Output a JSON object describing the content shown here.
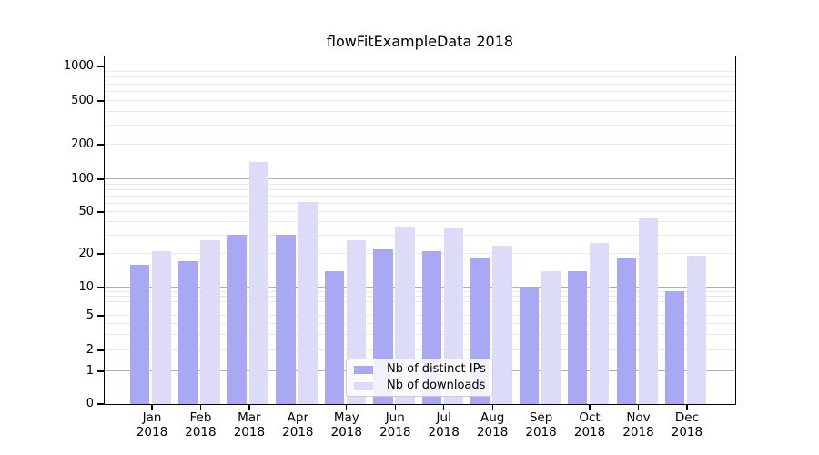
{
  "title": "flowFitExampleData 2018",
  "axes": {
    "x_months": [
      "Jan",
      "Feb",
      "Mar",
      "Apr",
      "May",
      "Jun",
      "Jul",
      "Aug",
      "Sep",
      "Oct",
      "Nov",
      "Dec"
    ],
    "x_year": "2018",
    "y_tick_labels": [
      "0",
      "1",
      "2",
      "5",
      "10",
      "20",
      "50",
      "100",
      "200",
      "500",
      "1000"
    ]
  },
  "chart_data": {
    "type": "bar",
    "title": "flowFitExampleData 2018",
    "categories": [
      "Jan 2018",
      "Feb 2018",
      "Mar 2018",
      "Apr 2018",
      "May 2018",
      "Jun 2018",
      "Jul 2018",
      "Aug 2018",
      "Sep 2018",
      "Oct 2018",
      "Nov 2018",
      "Dec 2018"
    ],
    "series": [
      {
        "name": "Nb of distinct IPs",
        "color": "#a8a8f5",
        "values": [
          16,
          17,
          30,
          30,
          14,
          22,
          21,
          18,
          10,
          14,
          18,
          9
        ]
      },
      {
        "name": "Nb of downloads",
        "color": "#dcdcf9",
        "values": [
          21,
          27,
          140,
          62,
          27,
          36,
          35,
          24,
          14,
          25,
          43,
          19
        ]
      }
    ],
    "xlabel": "",
    "ylabel": "",
    "yscale": "symlog (linear 0-1, log above 1)",
    "ytick_values": [
      0,
      1,
      2,
      5,
      10,
      20,
      50,
      100,
      200,
      500,
      1000
    ],
    "ylim": [
      0,
      1200
    ],
    "grid": "horizontal major (1,10,100,1000) + minor log gridlines",
    "legend_position": "lower center"
  },
  "legend": {
    "items": [
      {
        "label": "Nb of distinct IPs",
        "color": "#a8a8f5"
      },
      {
        "label": "Nb of downloads",
        "color": "#dcdcf9"
      }
    ]
  },
  "colors": {
    "background": "#ffffff",
    "spine": "#000000",
    "grid_major": "#b0b0b0",
    "grid_minor": "#e8e8e8",
    "series_ips": "#a8a8f5",
    "series_downloads": "#dcdcf9"
  }
}
